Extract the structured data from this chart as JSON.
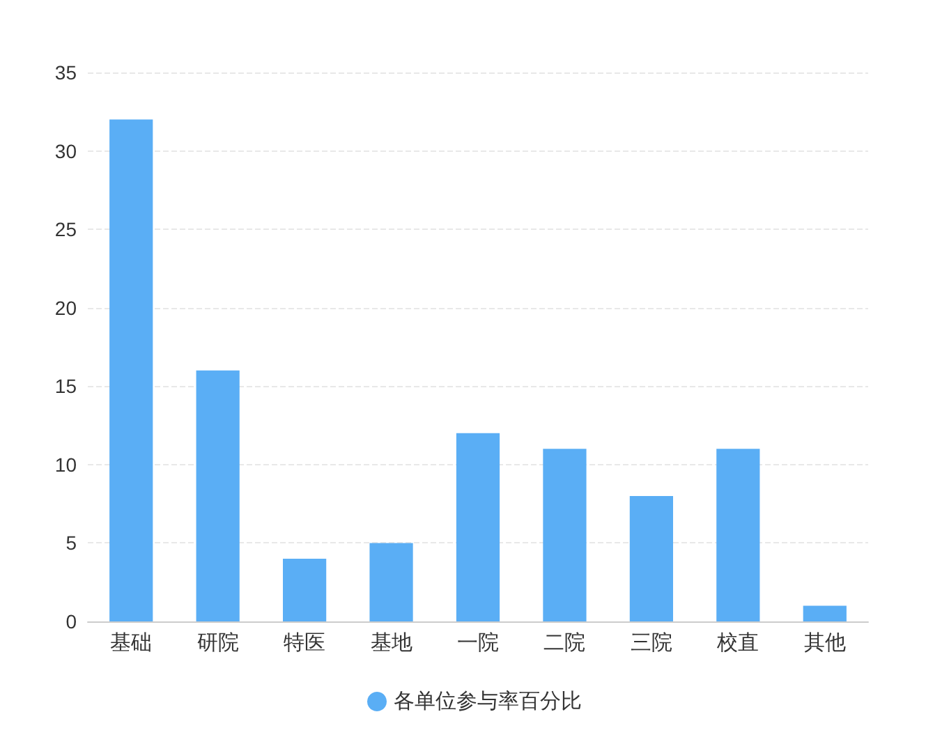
{
  "chart_data": {
    "type": "bar",
    "categories": [
      "基础",
      "研院",
      "特医",
      "基地",
      "一院",
      "二院",
      "三院",
      "校直",
      "其他"
    ],
    "series": [
      {
        "name": "各单位参与率百分比",
        "color": "#5aaef5",
        "values": [
          32,
          16,
          4,
          5,
          12,
          11,
          8,
          11,
          1
        ]
      }
    ],
    "ylim": [
      0,
      35
    ],
    "yticks": [
      0,
      5,
      10,
      15,
      20,
      25,
      30,
      35
    ],
    "grid": "y",
    "legend": "bottom"
  }
}
